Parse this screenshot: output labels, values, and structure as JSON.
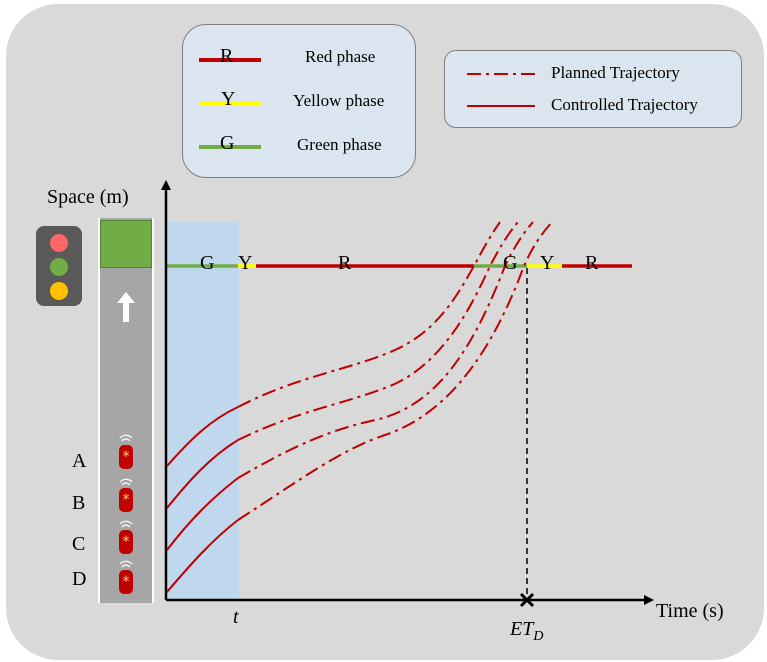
{
  "legend_phase": {
    "items": [
      {
        "letter": "R",
        "label": "Red phase",
        "color": "#c00000"
      },
      {
        "letter": "Y",
        "label": "Yellow phase",
        "color": "#ffff00"
      },
      {
        "letter": "G",
        "label": "Green phase",
        "color": "#70ad47"
      }
    ]
  },
  "legend_trajectory": {
    "items": [
      {
        "label": "Planned Trajectory",
        "style": "dash-dot",
        "color": "#c00000"
      },
      {
        "label": "Controlled Trajectory",
        "style": "solid",
        "color": "#c00000"
      }
    ]
  },
  "axes": {
    "y_label": "Space (m)",
    "x_label": "Time (s)",
    "x_tick_t": "t",
    "x_tick_et_base": "ET",
    "x_tick_et_sub": "D"
  },
  "signal_timeline": {
    "labels": [
      "G",
      "Y",
      "R",
      "G",
      "Y",
      "R"
    ]
  },
  "vehicles": [
    "A",
    "B",
    "C",
    "D"
  ],
  "traffic_light": {
    "lamps": [
      "#ff6666",
      "#70ad47",
      "#ffc000"
    ]
  },
  "colors": {
    "background": "#d9d9d9",
    "legend_fill": "#dbe5ef",
    "highlight_band": "#bdd7ee",
    "red": "#c00000",
    "yellow": "#ffff00",
    "green": "#70ad47"
  }
}
